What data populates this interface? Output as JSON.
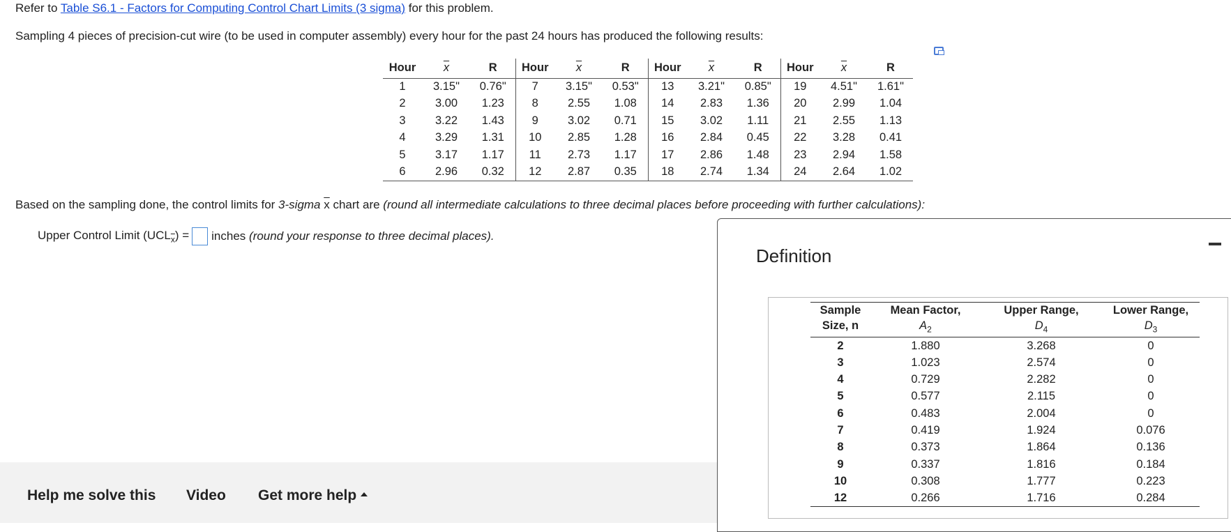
{
  "intro": {
    "prefix": "Refer to ",
    "link": "Table S6.1 - Factors for Computing Control Chart Limits (3 sigma)",
    "suffix": " for this problem."
  },
  "sampling_text": "Sampling 4 pieces of precision-cut wire (to be used in computer assembly) every hour for the past 24 hours has produced the following results:",
  "data_table": {
    "headers": [
      "Hour",
      "x",
      "R",
      "Hour",
      "x",
      "R",
      "Hour",
      "x",
      "R",
      "Hour",
      "x",
      "R"
    ],
    "rows": [
      [
        "1",
        "3.15\"",
        "0.76\"",
        "7",
        "3.15\"",
        "0.53\"",
        "13",
        "3.21\"",
        "0.85\"",
        "19",
        "4.51\"",
        "1.61\""
      ],
      [
        "2",
        "3.00",
        "1.23",
        "8",
        "2.55",
        "1.08",
        "14",
        "2.83",
        "1.36",
        "20",
        "2.99",
        "1.04"
      ],
      [
        "3",
        "3.22",
        "1.43",
        "9",
        "3.02",
        "0.71",
        "15",
        "3.02",
        "1.11",
        "21",
        "2.55",
        "1.13"
      ],
      [
        "4",
        "3.29",
        "1.31",
        "10",
        "2.85",
        "1.28",
        "16",
        "2.84",
        "0.45",
        "22",
        "3.28",
        "0.41"
      ],
      [
        "5",
        "3.17",
        "1.17",
        "11",
        "2.73",
        "1.17",
        "17",
        "2.86",
        "1.48",
        "23",
        "2.94",
        "1.58"
      ],
      [
        "6",
        "2.96",
        "0.32",
        "12",
        "2.87",
        "0.35",
        "18",
        "2.74",
        "1.34",
        "24",
        "2.64",
        "1.02"
      ]
    ]
  },
  "based_text": {
    "part1": "Based on the sampling done, the control limits for ",
    "sigma": "3-sigma",
    "space": " ",
    "xbar": "x",
    "part2": " chart are ",
    "italic": "(round all intermediate calculations to three decimal places before proceeding with further calculations):"
  },
  "ucl": {
    "label": "Upper Control Limit (UCL",
    "sub": "x",
    "close": ") =",
    "value": "",
    "units": "inches ",
    "note": "(round your response to three decimal places)."
  },
  "definition": {
    "title": "Definition",
    "headers": [
      {
        "line1": "Sample",
        "line2": "Size, n"
      },
      {
        "line1": "Mean Factor,",
        "sym": "A",
        "sub": "2"
      },
      {
        "line1": "Upper Range,",
        "sym": "D",
        "sub": "4"
      },
      {
        "line1": "Lower Range,",
        "sym": "D",
        "sub": "3"
      }
    ],
    "rows": [
      [
        "2",
        "1.880",
        "3.268",
        "0"
      ],
      [
        "3",
        "1.023",
        "2.574",
        "0"
      ],
      [
        "4",
        "0.729",
        "2.282",
        "0"
      ],
      [
        "5",
        "0.577",
        "2.115",
        "0"
      ],
      [
        "6",
        "0.483",
        "2.004",
        "0"
      ],
      [
        "7",
        "0.419",
        "1.924",
        "0.076"
      ],
      [
        "8",
        "0.373",
        "1.864",
        "0.136"
      ],
      [
        "9",
        "0.337",
        "1.816",
        "0.184"
      ],
      [
        "10",
        "0.308",
        "1.777",
        "0.223"
      ],
      [
        "12",
        "0.266",
        "1.716",
        "0.284"
      ]
    ]
  },
  "help_bar": {
    "solve": "Help me solve this",
    "video": "Video",
    "more": "Get more help"
  },
  "icons": [
    "expand-icon",
    "minimize-icon",
    "caret-up-icon"
  ]
}
